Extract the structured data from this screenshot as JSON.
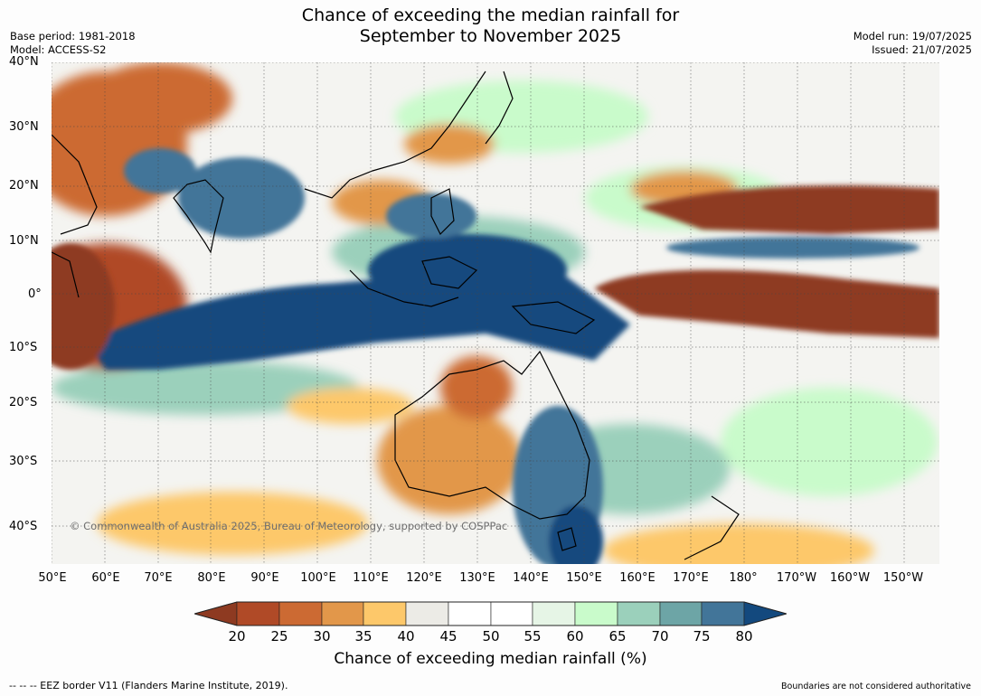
{
  "header": {
    "title_line1": "Chance of exceeding the median rainfall for",
    "title_line2": "September to November 2025",
    "base_period": "Base period: 1981-2018",
    "model": "Model: ACCESS-S2",
    "model_run": "Model run: 19/07/2025",
    "issued": "Issued: 21/07/2025"
  },
  "map": {
    "lat_labels": [
      "40°N",
      "30°N",
      "20°N",
      "10°N",
      "0°",
      "10°S",
      "20°S",
      "30°S",
      "40°S"
    ],
    "lon_labels": [
      "50°E",
      "60°E",
      "70°E",
      "80°E",
      "90°E",
      "100°E",
      "110°E",
      "120°E",
      "130°E",
      "140°E",
      "150°E",
      "160°E",
      "170°E",
      "180°",
      "170°W",
      "160°W",
      "150°W"
    ],
    "copyright": "© Commonwealth of Australia 2025, Bureau of Meteorology, supported by COSPPac",
    "regions": [
      {
        "name": "north-africa-arabia-dry",
        "color_class": "25-30"
      },
      {
        "name": "tibet-dry",
        "color_class": "30-35"
      },
      {
        "name": "india-wet",
        "color_class": "75-80"
      },
      {
        "name": "indian-ocean-wet-band",
        "color_class": ">80"
      },
      {
        "name": "maritime-continent-wet",
        "color_class": ">80"
      },
      {
        "name": "australia-east-wet",
        "color_class": "70-80"
      },
      {
        "name": "western-australia-dry",
        "color_class": "30-35"
      },
      {
        "name": "equatorial-pacific-dry",
        "color_class": "<20"
      },
      {
        "name": "north-pacific-dry-band",
        "color_class": "<20"
      }
    ]
  },
  "legend": {
    "title": "Chance of exceeding median rainfall (%)",
    "ticks": [
      "20",
      "25",
      "30",
      "35",
      "40",
      "45",
      "50",
      "55",
      "60",
      "65",
      "70",
      "75",
      "80"
    ],
    "colors": [
      "#8e3a21",
      "#b04a27",
      "#cc6a33",
      "#e2974a",
      "#fdc86a",
      "#ecebe6",
      "#ffffff",
      "#ffffff",
      "#e6f5e6",
      "#c9fbcb",
      "#9bd0bb",
      "#6da5a6",
      "#427599",
      "#13497e"
    ]
  },
  "footer": {
    "eez_note": "--  --  -- EEZ border V11 (Flanders Marine Institute, 2019).",
    "boundaries_note": "Boundaries are not considered authoritative"
  }
}
